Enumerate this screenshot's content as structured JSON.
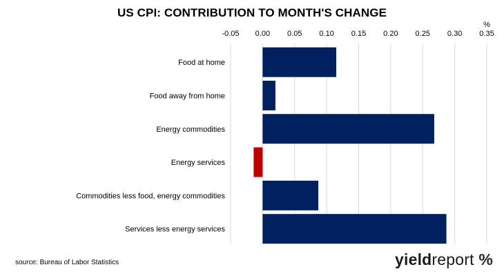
{
  "title": "US CPI: CONTRIBUTION TO MONTH'S CHANGE",
  "source": "source: Bureau of Labor Statistics",
  "logo": {
    "part1": "yield",
    "part2": "report",
    "symbol": "%"
  },
  "colors": {
    "positive": "#002060",
    "negative": "#C00000",
    "grid": "#d9d9d9"
  },
  "chart_data": {
    "type": "bar",
    "orientation": "horizontal",
    "unit_label": "%",
    "categories": [
      "Food at home",
      "Food away from home",
      "Energy commodities",
      "Energy services",
      "Commodities less food, energy commodities",
      "Services less energy services"
    ],
    "values": [
      0.115,
      0.02,
      0.268,
      -0.014,
      0.087,
      0.287
    ],
    "xlim": [
      -0.05,
      0.35
    ],
    "x_ticks": [
      "-0.05",
      "0.00",
      "0.05",
      "0.10",
      "0.15",
      "0.20",
      "0.25",
      "0.30",
      "0.35"
    ],
    "x_tick_values": [
      -0.05,
      0,
      0.05,
      0.1,
      0.15,
      0.2,
      0.25,
      0.3,
      0.35
    ],
    "axis_position": "top",
    "grid": true,
    "legend": "none"
  }
}
